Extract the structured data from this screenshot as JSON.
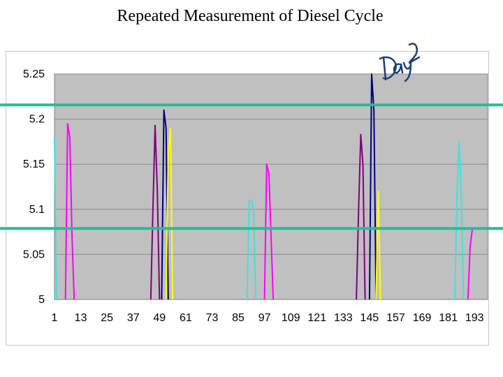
{
  "slide": {
    "title": "Repeated Measurement of Diesel Cycle",
    "annotation": "Day 2"
  },
  "colors": {
    "plot_area": "#c0c0c0",
    "gridline": "#8a8a8a",
    "limit_line": "#1fbf9a",
    "annotation_ink": "#1f3f7a"
  },
  "chart_data": {
    "type": "line",
    "title": "",
    "xlabel": "",
    "ylabel": "",
    "ylim": [
      5,
      5.25
    ],
    "yticks": [
      "5",
      "5.05",
      "5.1",
      "5.15",
      "5.2",
      "5.25"
    ],
    "xlim": [
      1,
      199
    ],
    "xtick_values": [
      1,
      13,
      25,
      37,
      49,
      61,
      73,
      85,
      97,
      109,
      121,
      133,
      145,
      157,
      169,
      181,
      193
    ],
    "xticks": [
      "1",
      "13",
      "25",
      "37",
      "49",
      "61",
      "73",
      "85",
      "97",
      "109",
      "121",
      "133",
      "145",
      "157",
      "169",
      "181",
      "193"
    ],
    "grid": true,
    "legend": "none",
    "limit_lines": [
      5.215,
      5.078
    ],
    "series": [
      {
        "name": "cyan",
        "color": "#40e0e0",
        "x": [
          1,
          2,
          3,
          89,
          90,
          91,
          92,
          93,
          184,
          185,
          186,
          187,
          188
        ],
        "values": [
          5.18,
          5.0,
          null,
          5.0,
          5.11,
          5.11,
          5.1,
          5.0,
          5.0,
          5.12,
          5.175,
          5.11,
          5.0
        ]
      },
      {
        "name": "magenta",
        "color": "#ff00ff",
        "x": [
          6,
          7,
          8,
          9,
          10,
          97,
          98,
          99,
          100,
          101,
          190,
          191,
          192
        ],
        "values": [
          5.0,
          5.195,
          5.18,
          5.07,
          5.0,
          5.0,
          5.15,
          5.14,
          5.07,
          5.0,
          5.0,
          5.058,
          5.078
        ]
      },
      {
        "name": "purple",
        "color": "#800080",
        "x": [
          45,
          46,
          47,
          48,
          49,
          139,
          140,
          141,
          142,
          143
        ],
        "values": [
          5.0,
          5.1,
          5.193,
          5.12,
          5.0,
          5.0,
          5.1,
          5.183,
          5.15,
          5.0
        ]
      },
      {
        "name": "navy",
        "color": "#000080",
        "x": [
          50,
          51,
          52,
          53,
          145,
          146,
          147,
          148
        ],
        "values": [
          5.0,
          5.21,
          5.19,
          5.0,
          5.0,
          5.25,
          5.21,
          5.0
        ]
      },
      {
        "name": "yellow",
        "color": "#ffff00",
        "x": [
          52,
          53,
          54,
          55,
          148,
          149,
          150
        ],
        "values": [
          5.0,
          5.16,
          5.19,
          5.0,
          5.0,
          5.12,
          5.0
        ]
      }
    ]
  }
}
